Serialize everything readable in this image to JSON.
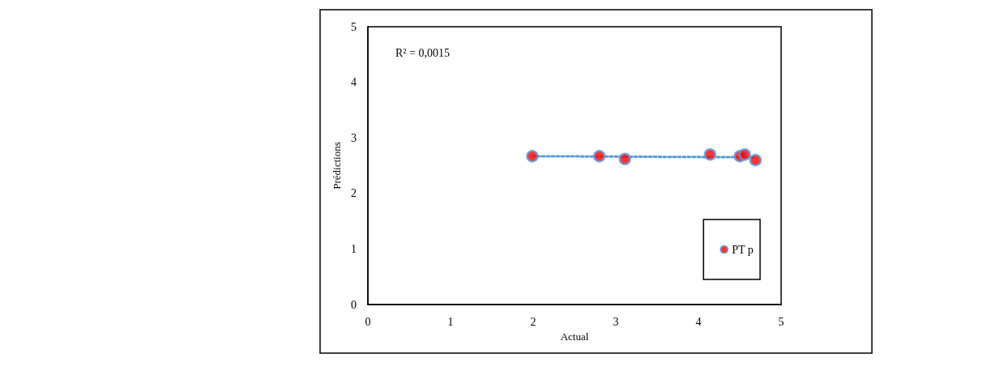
{
  "chart_data": {
    "type": "scatter",
    "xlabel": "Actual",
    "ylabel": "Prédictions",
    "annotations": [
      "R² = 0,0015"
    ],
    "xlim": [
      0,
      5
    ],
    "xticks": [
      0,
      1,
      2,
      3,
      4,
      5
    ],
    "ylim": [
      0,
      5
    ],
    "yticks": [
      0,
      1,
      2,
      3,
      4,
      5
    ],
    "grid": false,
    "legend": "bottom right",
    "marker": "circle",
    "series": [
      {
        "name": "PT p",
        "color": "#ff0000",
        "x": [
          1.99,
          2.8,
          3.11,
          4.14,
          4.5,
          4.56,
          4.69
        ],
        "values": [
          2.67,
          2.67,
          2.62,
          2.7,
          2.67,
          2.7,
          2.6
        ]
      },
      {
        "type": "line",
        "color": "#5b9bd5",
        "line_style": "dotted",
        "marker": "none",
        "x": [
          1.99,
          4.69
        ],
        "values": [
          2.67,
          2.65
        ]
      }
    ]
  }
}
